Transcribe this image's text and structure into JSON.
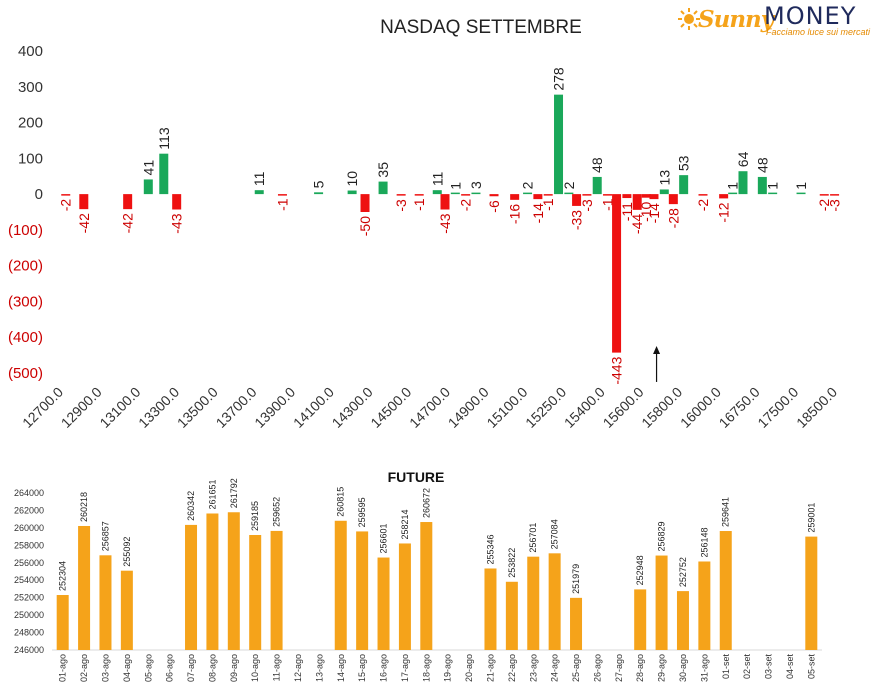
{
  "logo": {
    "brand_main": "Sunny",
    "brand_secondary": "MONEY",
    "tagline": "Facciamo luce sui mercati"
  },
  "colors": {
    "positive": "#1aa85a",
    "negative": "#ee1111",
    "future_bar": "#f5a31a",
    "axis_text": "#333333",
    "negative_text": "#cc0000"
  },
  "chart_data": [
    {
      "type": "bar",
      "title": "NASDAQ SETTEMBRE",
      "xlabel": "",
      "ylabel": "",
      "ylim": [
        -500,
        400
      ],
      "y_ticks": [
        "400",
        "300",
        "200",
        "100",
        "0",
        "(100)",
        "(200)",
        "(300)",
        "(400)",
        "(500)"
      ],
      "y_tick_values": [
        400,
        300,
        200,
        100,
        0,
        -100,
        -200,
        -300,
        -400,
        -500
      ],
      "x_tick_labels": [
        "12700.0",
        "12900.0",
        "13100.0",
        "13300.0",
        "13500.0",
        "13700.0",
        "13900.0",
        "14100.0",
        "14300.0",
        "14500.0",
        "14700.0",
        "14900.0",
        "15100.0",
        "15250.0",
        "15400.0",
        "15600.0",
        "15800.0",
        "16000.0",
        "16750.0",
        "17500.0",
        "18500.0"
      ],
      "grid": false,
      "legend": "none",
      "bars": [
        {
          "slot": 0.3,
          "value": -2
        },
        {
          "slot": 1.0,
          "value": -42
        },
        {
          "slot": 2.7,
          "value": -42
        },
        {
          "slot": 3.5,
          "value": 41
        },
        {
          "slot": 4.1,
          "value": 113
        },
        {
          "slot": 4.6,
          "value": -43
        },
        {
          "slot": 7.8,
          "value": 11
        },
        {
          "slot": 8.7,
          "value": -1
        },
        {
          "slot": 10.1,
          "value": 5
        },
        {
          "slot": 11.4,
          "value": 10
        },
        {
          "slot": 11.9,
          "value": -50
        },
        {
          "slot": 12.6,
          "value": 35
        },
        {
          "slot": 13.3,
          "value": -3
        },
        {
          "slot": 14.0,
          "value": -1
        },
        {
          "slot": 14.7,
          "value": 11
        },
        {
          "slot": 15.0,
          "value": -43
        },
        {
          "slot": 15.4,
          "value": 1
        },
        {
          "slot": 15.8,
          "value": -2
        },
        {
          "slot": 16.2,
          "value": 3
        },
        {
          "slot": 16.9,
          "value": -6
        },
        {
          "slot": 17.7,
          "value": -16
        },
        {
          "slot": 18.2,
          "value": 2
        },
        {
          "slot": 18.6,
          "value": -14
        },
        {
          "slot": 19.0,
          "value": -1
        },
        {
          "slot": 19.4,
          "value": 278
        },
        {
          "slot": 19.8,
          "value": 2
        },
        {
          "slot": 20.1,
          "value": -33
        },
        {
          "slot": 20.5,
          "value": -3
        },
        {
          "slot": 20.9,
          "value": 48
        },
        {
          "slot": 21.3,
          "value": -1
        },
        {
          "slot": 21.65,
          "value": -443
        },
        {
          "slot": 22.05,
          "value": -11
        },
        {
          "slot": 22.45,
          "value": -44
        },
        {
          "slot": 22.8,
          "value": -10
        },
        {
          "slot": 23.1,
          "value": -14
        },
        {
          "slot": 23.5,
          "value": 13
        },
        {
          "slot": 23.85,
          "value": -28
        },
        {
          "slot": 24.25,
          "value": 53
        },
        {
          "slot": 25.0,
          "value": -2
        },
        {
          "slot": 25.8,
          "value": -12
        },
        {
          "slot": 26.15,
          "value": 1
        },
        {
          "slot": 26.55,
          "value": 64
        },
        {
          "slot": 27.3,
          "value": 48
        },
        {
          "slot": 27.7,
          "value": 1
        },
        {
          "slot": 28.8,
          "value": 1
        },
        {
          "slot": 29.7,
          "value": -2
        },
        {
          "slot": 30.1,
          "value": -3
        }
      ],
      "annotation": {
        "type": "arrow",
        "slot": 23.2,
        "from_value": -525,
        "to_value": -430
      }
    },
    {
      "type": "bar",
      "title": "FUTURE",
      "xlabel": "",
      "ylabel": "",
      "ylim": [
        246000,
        264000
      ],
      "y_ticks": [
        246000,
        248000,
        250000,
        252000,
        254000,
        256000,
        258000,
        260000,
        262000,
        264000
      ],
      "categories": [
        "01-ago",
        "02-ago",
        "03-ago",
        "04-ago",
        "05-ago",
        "06-ago",
        "07-ago",
        "08-ago",
        "09-ago",
        "10-ago",
        "11-ago",
        "12-ago",
        "13-ago",
        "14-ago",
        "15-ago",
        "16-ago",
        "17-ago",
        "18-ago",
        "19-ago",
        "20-ago",
        "21-ago",
        "22-ago",
        "23-ago",
        "24-ago",
        "25-ago",
        "26-ago",
        "27-ago",
        "28-ago",
        "29-ago",
        "30-ago",
        "31-ago",
        "01-set",
        "02-set",
        "03-set",
        "04-set",
        "05-set"
      ],
      "values": [
        252304,
        260218,
        256857,
        255092,
        null,
        null,
        260342,
        261651,
        261792,
        259185,
        259652,
        null,
        null,
        260815,
        259595,
        256601,
        258214,
        260672,
        null,
        null,
        255346,
        253822,
        256701,
        257084,
        251979,
        null,
        null,
        252948,
        256829,
        252752,
        256148,
        259641,
        null,
        null,
        null,
        259001
      ],
      "value_labels": [
        "252304",
        "260218",
        "256857",
        "255092",
        "",
        "",
        "260342",
        "261651",
        "261792",
        "259185",
        "259652",
        "",
        "",
        "260815",
        "259595",
        "256601",
        "258214",
        "260672",
        "",
        "",
        "255346",
        "253822",
        "256701",
        "257084",
        "251979",
        "",
        "",
        "252948",
        "256829",
        "252752",
        "256148",
        "259641",
        "",
        "",
        "",
        "259001"
      ],
      "grid": false,
      "legend": "none"
    }
  ]
}
